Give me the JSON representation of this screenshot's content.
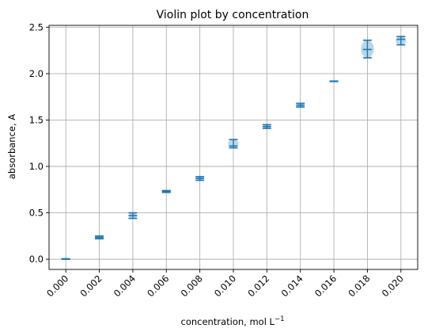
{
  "chart_data": {
    "type": "violin",
    "title": "Violin plot by concentration",
    "xlabel": "concentration, mol L",
    "xlabel_superscript": "−1",
    "ylabel": "absorbance, A",
    "ylim": [
      -0.11,
      2.52
    ],
    "yticks": [
      "0.0",
      "0.5",
      "1.0",
      "1.5",
      "2.0",
      "2.5"
    ],
    "ytick_values": [
      0.0,
      0.5,
      1.0,
      1.5,
      2.0,
      2.5
    ],
    "grid": true,
    "categories": [
      "0.000",
      "0.002",
      "0.004",
      "0.006",
      "0.008",
      "0.010",
      "0.012",
      "0.014",
      "0.016",
      "0.018",
      "0.020"
    ],
    "violins": [
      {
        "min": 0.0,
        "max": 0.005,
        "mean": 0.002
      },
      {
        "min": 0.22,
        "max": 0.25,
        "mean": 0.235
      },
      {
        "min": 0.44,
        "max": 0.5,
        "mean": 0.47
      },
      {
        "min": 0.72,
        "max": 0.74,
        "mean": 0.73
      },
      {
        "min": 0.85,
        "max": 0.89,
        "mean": 0.87
      },
      {
        "min": 1.2,
        "max": 1.29,
        "mean": 1.22
      },
      {
        "min": 1.41,
        "max": 1.45,
        "mean": 1.43
      },
      {
        "min": 1.64,
        "max": 1.68,
        "mean": 1.66
      },
      {
        "min": 1.915,
        "max": 1.92,
        "mean": 1.918
      },
      {
        "min": 2.17,
        "max": 2.36,
        "mean": 2.26
      },
      {
        "min": 2.31,
        "max": 2.4,
        "mean": 2.37
      }
    ],
    "colors": {
      "body": "#1f77b4",
      "body_alpha": 0.3,
      "lines": "#1f77b4",
      "grid": "#b0b0b0"
    }
  }
}
